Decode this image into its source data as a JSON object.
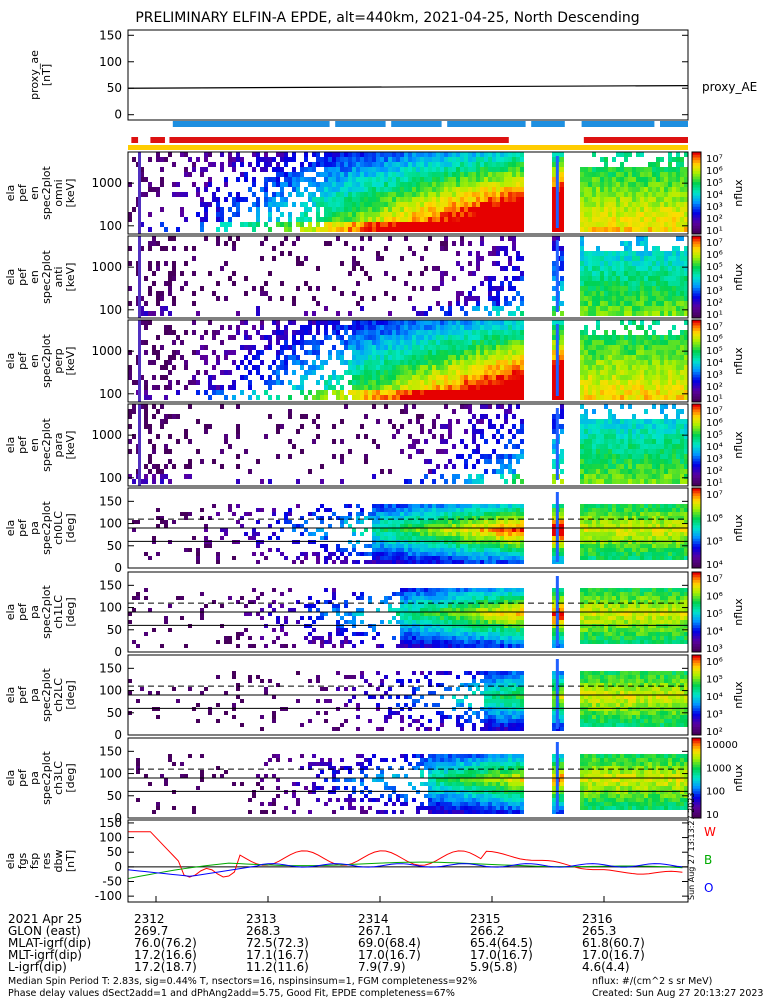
{
  "title": "PRELIMINARY ELFIN-A EPDE, alt=440km, 2021-04-25, North Descending",
  "chart_data": {
    "type": "heatmap",
    "panels": [
      {
        "id": "proxy_ae",
        "ylabel": "proxy_ae\n[nT]",
        "ylim": [
          -10,
          160
        ],
        "yticks": [
          150,
          100,
          50,
          0
        ],
        "right_label": "proxy_AE",
        "kind": "line",
        "series": [
          {
            "name": "proxy_AE",
            "color": "#000000",
            "x": [
              2311.75,
              2316.75
            ],
            "y": [
              50,
              55
            ]
          }
        ]
      },
      {
        "id": "spec_omni",
        "ylabel": "ela\npef\nen\nspec2plot\nomni\n[keV]",
        "yticks": [
          "1000",
          "100"
        ],
        "colorbar_label": "nflux",
        "colorbar_ticks": [
          "10⁷",
          "10⁶",
          "10⁵",
          "10⁴",
          "10³",
          "10²",
          "10¹"
        ],
        "colorbar_range": [
          1,
          7
        ]
      },
      {
        "id": "spec_anti",
        "ylabel": "ela\npef\nen\nspec2plot\nanti\n[keV]",
        "yticks": [
          "1000",
          "100"
        ],
        "colorbar_label": "nflux",
        "colorbar_ticks": [
          "10⁷",
          "10⁶",
          "10⁵",
          "10⁴",
          "10³",
          "10²",
          "10¹"
        ],
        "colorbar_range": [
          1,
          7
        ]
      },
      {
        "id": "spec_perp",
        "ylabel": "ela\npef\nen\nspec2plot\nperp\n[keV]",
        "yticks": [
          "1000",
          "100"
        ],
        "colorbar_label": "nflux",
        "colorbar_ticks": [
          "10⁷",
          "10⁶",
          "10⁵",
          "10⁴",
          "10³",
          "10²",
          "10¹"
        ],
        "colorbar_range": [
          1,
          7
        ]
      },
      {
        "id": "spec_para",
        "ylabel": "ela\npef\nen\nspec2plot\npara\n[keV]",
        "yticks": [
          "1000",
          "100"
        ],
        "colorbar_label": "nflux",
        "colorbar_ticks": [
          "10⁷",
          "10⁶",
          "10⁵",
          "10⁴",
          "10³",
          "10²",
          "10¹"
        ],
        "colorbar_range": [
          1,
          7
        ]
      },
      {
        "id": "pa_ch0",
        "ylabel": "ela\npef\npa\nspec2plot\nch0LC\n[deg]",
        "yticks": [
          "150",
          "100",
          "50",
          "0"
        ],
        "colorbar_label": "nflux",
        "colorbar_ticks": [
          "10⁷",
          "10⁶",
          "10⁵",
          "10⁴"
        ],
        "colorbar_range": [
          3.8,
          7
        ]
      },
      {
        "id": "pa_ch1",
        "ylabel": "ela\npef\npa\nspec2plot\nch1LC\n[deg]",
        "yticks": [
          "150",
          "100",
          "50",
          "0"
        ],
        "colorbar_label": "nflux",
        "colorbar_ticks": [
          "10⁷",
          "10⁶",
          "10⁵",
          "10⁴",
          "10³"
        ],
        "colorbar_range": [
          2.8,
          6.8
        ]
      },
      {
        "id": "pa_ch2",
        "ylabel": "ela\npef\npa\nspec2plot\nch2LC\n[deg]",
        "yticks": [
          "150",
          "100",
          "50",
          "0"
        ],
        "colorbar_label": "nflux",
        "colorbar_ticks": [
          "10⁶",
          "10⁵",
          "10⁴",
          "10³",
          "10²"
        ],
        "colorbar_range": [
          2,
          6.5
        ]
      },
      {
        "id": "pa_ch3",
        "ylabel": "ela\npef\npa\nspec2plot\nch3LC\n[deg]",
        "yticks": [
          "150",
          "100",
          "50",
          "0"
        ],
        "colorbar_label": "nflux",
        "colorbar_ticks": [
          "10000",
          "1000",
          "100",
          "10"
        ],
        "colorbar_range": [
          1,
          4.3
        ]
      },
      {
        "id": "fgs",
        "ylabel": "ela\nfgs\nfsp\nres\ndbw\n[nT]",
        "yticks": [
          "150",
          "100",
          "50",
          "0",
          "-50",
          "-100"
        ],
        "ylim": [
          -120,
          160
        ],
        "kind": "line",
        "legend": [
          {
            "name": "W",
            "color": "#ff0000"
          },
          {
            "name": "B",
            "color": "#00aa00"
          },
          {
            "name": "O",
            "color": "#0000ff"
          }
        ]
      }
    ],
    "pa_lines": {
      "solid": [
        60,
        90
      ],
      "dashed": [
        110
      ]
    },
    "x_axis": {
      "times": [
        "2312",
        "2313",
        "2314",
        "2315",
        "2316"
      ]
    },
    "status_bars": {
      "blue": [
        [
          2312.15,
          2313.55
        ],
        [
          2313.6,
          2314.05
        ],
        [
          2314.1,
          2314.55
        ],
        [
          2314.6,
          2315.3
        ],
        [
          2315.35,
          2315.65
        ],
        [
          2315.8,
          2316.45
        ],
        [
          2316.5,
          2316.75
        ]
      ],
      "red": [
        [
          2311.78,
          2311.84
        ],
        [
          2311.95,
          2312.08
        ],
        [
          2312.12,
          2315.15
        ],
        [
          2315.82,
          2316.75
        ]
      ]
    }
  },
  "footer": {
    "rows": [
      {
        "label": "2021 Apr 25",
        "vals": [
          "2312",
          "2313",
          "2314",
          "2315",
          "2316"
        ]
      },
      {
        "label": "GLON (east)",
        "vals": [
          "269.7",
          "268.3",
          "267.1",
          "266.2",
          "265.3"
        ]
      },
      {
        "label": "MLAT-igrf(dip)",
        "vals": [
          "76.0(76.2)",
          "72.5(72.3)",
          "69.0(68.4)",
          "65.4(64.5)",
          "61.8(60.7)"
        ]
      },
      {
        "label": "MLT-igrf(dip)",
        "vals": [
          "17.2(16.6)",
          "17.1(16.7)",
          "17.0(16.7)",
          "17.0(16.7)",
          "17.0(16.7)"
        ]
      },
      {
        "label": "L-igrf(dip)",
        "vals": [
          "17.2(18.7)",
          "11.2(11.6)",
          "7.9(7.9)",
          "5.9(5.8)",
          "4.6(4.4)"
        ]
      }
    ],
    "note1": "Median Spin Period T: 2.83s, sig=0.44% T, nsectors=16, nspinsinsum=1, FGM completeness=92%",
    "note2": "Phase delay values dSect2add=1 and dPhAng2add=5.75, Good Fit, EPDE completeness=67%",
    "units": "nflux: #/(cm^2 s sr MeV)",
    "created": "Created: Sun Aug 27 20:13:27 2023",
    "side_stamp": "Sun Aug 27 13:13:27 2023"
  }
}
